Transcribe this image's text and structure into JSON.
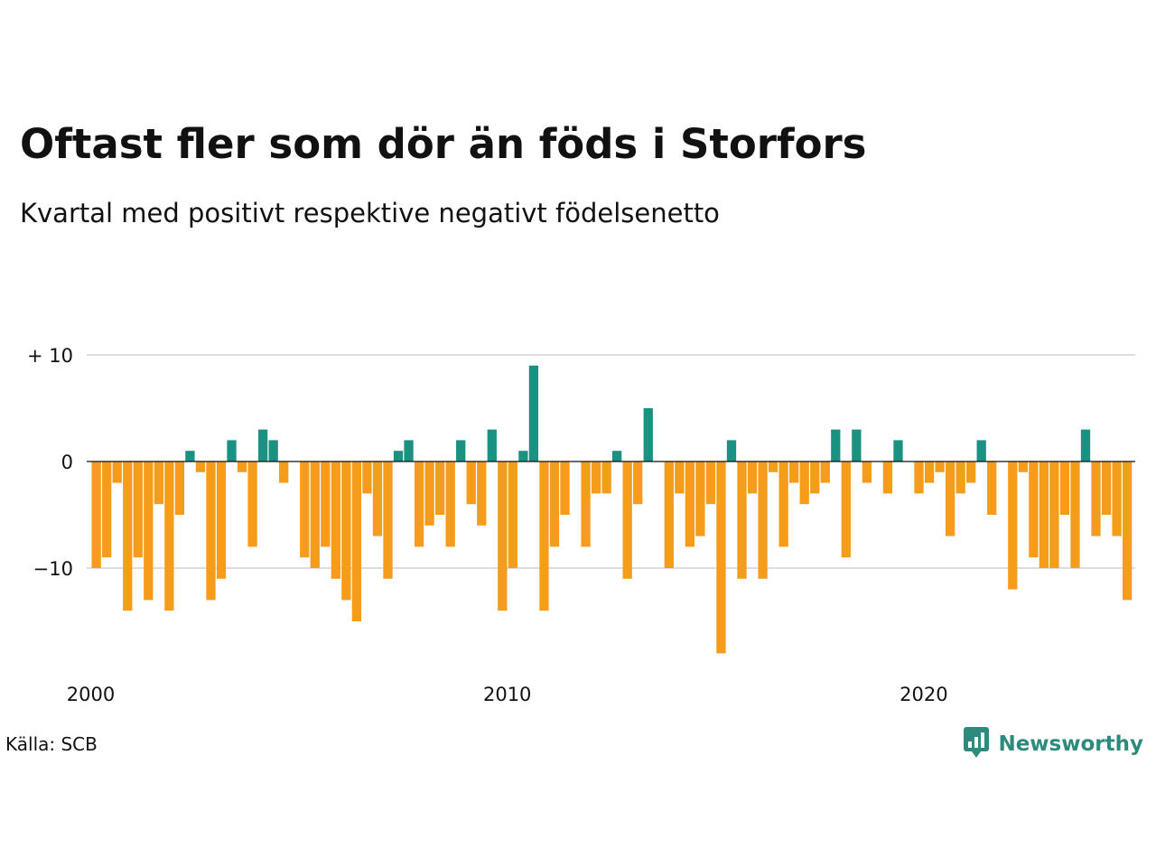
{
  "title": "Oftast fler som dör än föds i Storfors",
  "subtitle": "Kvartal med positivt respektive negativt födelsenetto",
  "source": "Källa: SCB",
  "brand": {
    "name": "Newsworthy",
    "icon": "newsworthy-chart-icon",
    "color": "#2e8a7c"
  },
  "chart_data": {
    "type": "bar",
    "y_ticks": [
      {
        "value": 10,
        "label": "+ 10"
      },
      {
        "value": 0,
        "label": "0"
      },
      {
        "value": -10,
        "label": "−10"
      }
    ],
    "x_ticks": [
      {
        "value": 2000,
        "label": "2000"
      },
      {
        "value": 2010,
        "label": "2010"
      },
      {
        "value": 2020,
        "label": "2020"
      }
    ],
    "x_start": 2000,
    "x_step": 0.25,
    "ylim": [
      -18,
      10
    ],
    "grid": true,
    "colors": {
      "positive": "#1a9282",
      "negative": "#f59d1a"
    },
    "values": [
      -10,
      -9,
      -2,
      -14,
      -9,
      -13,
      -4,
      -14,
      -5,
      1,
      -1,
      -13,
      -11,
      2,
      -1,
      -8,
      3,
      2,
      -2,
      0,
      -9,
      -10,
      -8,
      -11,
      -13,
      -15,
      -3,
      -7,
      -11,
      1,
      2,
      -8,
      -6,
      -5,
      -8,
      2,
      -4,
      -6,
      3,
      -14,
      -10,
      1,
      9,
      -14,
      -8,
      -5,
      0,
      -8,
      -3,
      -3,
      1,
      -11,
      -4,
      5,
      0,
      -10,
      -3,
      -8,
      -7,
      -4,
      -18,
      2,
      -11,
      -3,
      -11,
      -1,
      -8,
      -2,
      -4,
      -3,
      -2,
      3,
      -9,
      3,
      -2,
      0,
      -3,
      2,
      0,
      -3,
      -2,
      -1,
      -7,
      -3,
      -2,
      2,
      -5,
      0,
      -12,
      -1,
      -9,
      -10,
      -10,
      -5,
      -10,
      3,
      -7,
      -5,
      -7,
      -13
    ]
  }
}
